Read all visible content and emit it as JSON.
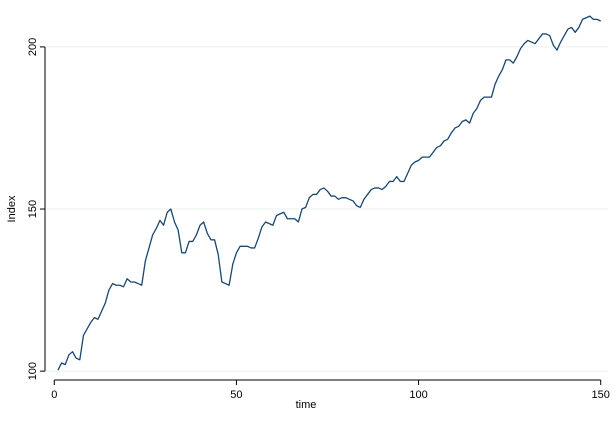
{
  "chart_data": {
    "type": "line",
    "xlabel": "time",
    "ylabel": "Index",
    "x": [
      1,
      2,
      3,
      4,
      5,
      6,
      7,
      8,
      9,
      10,
      11,
      12,
      13,
      14,
      15,
      16,
      17,
      18,
      19,
      20,
      21,
      22,
      23,
      24,
      25,
      26,
      27,
      28,
      29,
      30,
      31,
      32,
      33,
      34,
      35,
      36,
      37,
      38,
      39,
      40,
      41,
      42,
      43,
      44,
      45,
      46,
      47,
      48,
      49,
      50,
      51,
      52,
      53,
      54,
      55,
      56,
      57,
      58,
      59,
      60,
      61,
      62,
      63,
      64,
      65,
      66,
      67,
      68,
      69,
      70,
      71,
      72,
      73,
      74,
      75,
      76,
      77,
      78,
      79,
      80,
      81,
      82,
      83,
      84,
      85,
      86,
      87,
      88,
      89,
      90,
      91,
      92,
      93,
      94,
      95,
      96,
      97,
      98,
      99,
      100,
      101,
      102,
      103,
      104,
      105,
      106,
      107,
      108,
      109,
      110,
      111,
      112,
      113,
      114,
      115,
      116,
      117,
      118,
      119,
      120,
      121,
      122,
      123,
      124,
      125,
      126,
      127,
      128,
      129,
      130,
      131,
      132,
      133,
      134,
      135,
      136,
      137,
      138,
      139,
      140,
      141,
      142,
      143,
      144,
      145,
      146,
      147,
      148,
      149,
      150
    ],
    "series": [
      {
        "name": "Index",
        "color": "#1a476f",
        "values": [
          100.3,
          102.5,
          102,
          105,
          106,
          104,
          103.5,
          111,
          113,
          115,
          116.5,
          116,
          118.5,
          121,
          125,
          127,
          126.5,
          126.5,
          126,
          128.5,
          127.5,
          127.5,
          127,
          126.5,
          134,
          138,
          142,
          144,
          146.5,
          145,
          149,
          150,
          146,
          143.5,
          136.5,
          136.5,
          140,
          140,
          142,
          145,
          146,
          142.5,
          140.5,
          140.5,
          136,
          127.5,
          127,
          126.5,
          133,
          136.5,
          138.5,
          138.5,
          138.5,
          138,
          138,
          141,
          144.5,
          146,
          145.5,
          145,
          148,
          148.5,
          149,
          147,
          147,
          147,
          146,
          150,
          150.5,
          153.5,
          154.5,
          154.5,
          156,
          156.5,
          155.5,
          154,
          154,
          153,
          153.5,
          153.5,
          153,
          152.5,
          151,
          150.5,
          153,
          154.5,
          156,
          156.5,
          156.5,
          156,
          157,
          158.5,
          158.5,
          160,
          158.5,
          158.5,
          161,
          163.5,
          164.5,
          165,
          166,
          166,
          166,
          167.5,
          169,
          169.5,
          171,
          171.5,
          173.5,
          175,
          175.5,
          177,
          177.5,
          176.5,
          179.5,
          181,
          183.5,
          184.5,
          184.5,
          184.5,
          188.5,
          191,
          193,
          196,
          196,
          195,
          197,
          199.5,
          201,
          202,
          201.5,
          201,
          202.5,
          204,
          204,
          203.5,
          200.5,
          199,
          201.5,
          203.5,
          205.5,
          206,
          204.5,
          206,
          208.5,
          209,
          209.5,
          208.5,
          208.5,
          208
        ]
      }
    ],
    "xlim": [
      -2,
      152
    ],
    "ylim": [
      98.5,
      212
    ],
    "xticks": [
      0,
      50,
      100,
      150
    ],
    "yticks": [
      100,
      150,
      200
    ],
    "grid": true
  }
}
